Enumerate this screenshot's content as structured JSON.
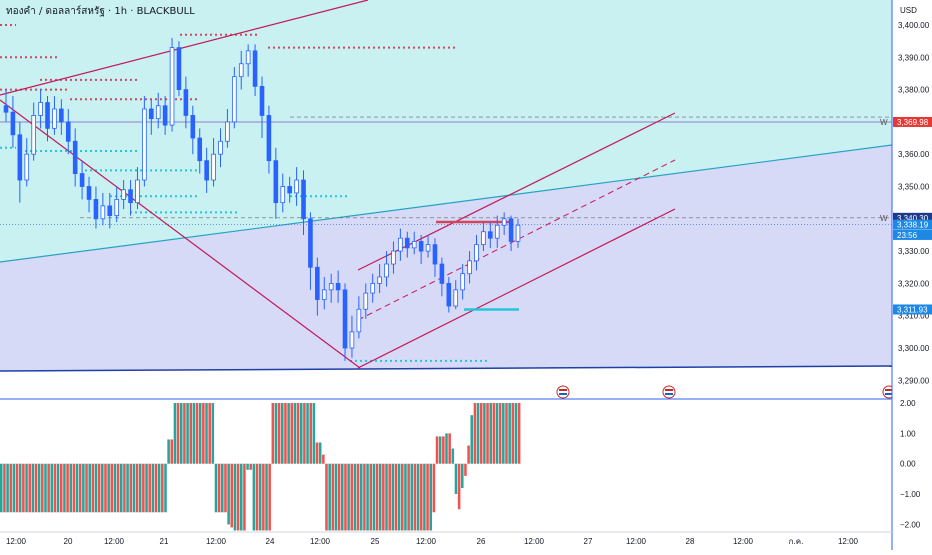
{
  "chart_data": {
    "type": "candlestick",
    "title": "ทองคำ / ดอลลาร์สหรัฐ · 1h · BLACKBULL",
    "currency": "USD",
    "price_axis": {
      "range": [
        3283,
        3408
      ],
      "ticks": [
        "3,400.00",
        "3,390.00",
        "3,380.00",
        "3,370.00",
        "3,360.00",
        "3,350.00",
        "3,340.00",
        "3,330.00",
        "3,320.00",
        "3,310.00",
        "3,300.00",
        "3,290.00"
      ]
    },
    "price_labels": [
      {
        "text": "3,369.98",
        "price": 3369.98,
        "color": "#e53935"
      },
      {
        "text": "3,340.30",
        "price": 3340.3,
        "color": "#1e3a8a"
      },
      {
        "text": "3,338.19",
        "price": 3338.19,
        "color": "#1e88e5"
      },
      {
        "text": "23:56",
        "price": 3335.0,
        "color": "#1e88e5"
      },
      {
        "text": "3,311.93",
        "price": 3311.93,
        "color": "#1e88e5"
      }
    ],
    "line_markers": [
      {
        "text": "W",
        "price": 3369.98
      },
      {
        "text": "W",
        "price": 3340.3
      }
    ],
    "x_axis": {
      "labels": [
        "12:00",
        "20",
        "12:00",
        "21",
        "12:00",
        "24",
        "12:00",
        "25",
        "12:00",
        "26",
        "12:00",
        "27",
        "12:00",
        "28",
        "12:00",
        "ก.ค.",
        "12:00"
      ]
    },
    "candles": [
      [
        3375,
        3373,
        3380,
        3370
      ],
      [
        3373,
        3366,
        3378,
        3362
      ],
      [
        3366,
        3352,
        3370,
        3345
      ],
      [
        3352,
        3360,
        3365,
        3350
      ],
      [
        3360,
        3372,
        3376,
        3358
      ],
      [
        3372,
        3376,
        3380,
        3368
      ],
      [
        3376,
        3368,
        3378,
        3364
      ],
      [
        3368,
        3374,
        3378,
        3366
      ],
      [
        3374,
        3370,
        3377,
        3366
      ],
      [
        3370,
        3364,
        3374,
        3360
      ],
      [
        3364,
        3354,
        3368,
        3350
      ],
      [
        3354,
        3350,
        3358,
        3346
      ],
      [
        3350,
        3346,
        3353,
        3342
      ],
      [
        3346,
        3340,
        3350,
        3337
      ],
      [
        3340,
        3344,
        3348,
        3338
      ],
      [
        3344,
        3341,
        3348,
        3337
      ],
      [
        3341,
        3346,
        3350,
        3339
      ],
      [
        3346,
        3349,
        3352,
        3343
      ],
      [
        3349,
        3345,
        3352,
        3341
      ],
      [
        3345,
        3352,
        3356,
        3343
      ],
      [
        3352,
        3374,
        3378,
        3350
      ],
      [
        3374,
        3371,
        3377,
        3366
      ],
      [
        3371,
        3375,
        3379,
        3368
      ],
      [
        3375,
        3369,
        3378,
        3366
      ],
      [
        3369,
        3393,
        3396,
        3367
      ],
      [
        3393,
        3380,
        3395,
        3378
      ],
      [
        3380,
        3372,
        3384,
        3368
      ],
      [
        3372,
        3365,
        3375,
        3360
      ],
      [
        3365,
        3358,
        3368,
        3354
      ],
      [
        3358,
        3352,
        3362,
        3348
      ],
      [
        3352,
        3360,
        3365,
        3350
      ],
      [
        3360,
        3364,
        3368,
        3356
      ],
      [
        3364,
        3370,
        3374,
        3362
      ],
      [
        3370,
        3384,
        3387,
        3368
      ],
      [
        3384,
        3388,
        3392,
        3380
      ],
      [
        3388,
        3392,
        3394,
        3384
      ],
      [
        3392,
        3381,
        3394,
        3378
      ],
      [
        3381,
        3372,
        3384,
        3365
      ],
      [
        3372,
        3358,
        3375,
        3354
      ],
      [
        3358,
        3345,
        3362,
        3340
      ],
      [
        3345,
        3350,
        3354,
        3342
      ],
      [
        3350,
        3348,
        3353,
        3345
      ],
      [
        3348,
        3352,
        3356,
        3344
      ],
      [
        3352,
        3340,
        3355,
        3335
      ],
      [
        3340,
        3325,
        3342,
        3318
      ],
      [
        3325,
        3315,
        3328,
        3310
      ],
      [
        3315,
        3318,
        3322,
        3312
      ],
      [
        3318,
        3320,
        3323,
        3314
      ],
      [
        3320,
        3318,
        3324,
        3314
      ],
      [
        3318,
        3300,
        3320,
        3296
      ],
      [
        3300,
        3305,
        3310,
        3297
      ],
      [
        3305,
        3312,
        3316,
        3303
      ],
      [
        3312,
        3317,
        3320,
        3309
      ],
      [
        3317,
        3320,
        3323,
        3314
      ],
      [
        3320,
        3322,
        3326,
        3317
      ],
      [
        3322,
        3326,
        3330,
        3319
      ],
      [
        3326,
        3330,
        3333,
        3323
      ],
      [
        3330,
        3334,
        3337,
        3327
      ],
      [
        3334,
        3331,
        3336,
        3328
      ],
      [
        3331,
        3333,
        3336,
        3329
      ],
      [
        3333,
        3330,
        3335,
        3326
      ],
      [
        3330,
        3332,
        3335,
        3328
      ],
      [
        3332,
        3326,
        3334,
        3322
      ],
      [
        3326,
        3320,
        3328,
        3316
      ],
      [
        3320,
        3313,
        3322,
        3311
      ],
      [
        3313,
        3318,
        3321,
        3312
      ],
      [
        3318,
        3323,
        3326,
        3315
      ],
      [
        3323,
        3327,
        3330,
        3320
      ],
      [
        3327,
        3332,
        3335,
        3324
      ],
      [
        3332,
        3336,
        3339,
        3330
      ],
      [
        3336,
        3334,
        3339,
        3331
      ],
      [
        3334,
        3338,
        3341,
        3331
      ],
      [
        3338,
        3340,
        3342,
        3335
      ],
      [
        3340,
        3333,
        3341,
        3330
      ],
      [
        3333,
        3338,
        3340,
        3331
      ]
    ],
    "indicator": {
      "type": "histogram",
      "range": [
        -2.25,
        2.1
      ],
      "ticks": [
        "2.00",
        "1.00",
        "0.00",
        "−1.00",
        "−2.00"
      ],
      "values": [
        -1.6,
        -1.6,
        -1.6,
        -1.6,
        -1.6,
        -1.6,
        -1.6,
        -1.6,
        -1.6,
        -1.6,
        -1.6,
        -1.6,
        -1.6,
        -1.6,
        -1.6,
        -1.6,
        -1.6,
        -1.6,
        -1.6,
        -1.6,
        -1.6,
        -1.6,
        -1.6,
        -1.6,
        -1.6,
        -1.6,
        -1.6,
        -1.6,
        -1.6,
        -1.6,
        -1.6,
        -1.6,
        -1.6,
        -1.6,
        -1.6,
        -1.6,
        -1.6,
        -1.6,
        -1.6,
        -1.6,
        -1.6,
        -1.6,
        -1.6,
        -1.6,
        -1.6,
        -1.6,
        -1.6,
        -1.6,
        -1.6,
        -1.6,
        -1.6,
        -1.6,
        -1.6,
        0.8,
        0.8,
        2.0,
        2.0,
        2.0,
        2.0,
        2.0,
        2.0,
        2.0,
        2.0,
        2.0,
        2.0,
        2.0,
        2.0,
        2.0,
        -1.6,
        -1.6,
        -1.6,
        -1.6,
        -2.0,
        -2.1,
        -2.2,
        -2.2,
        -2.2,
        -2.2,
        -0.2,
        -0.2,
        -2.2,
        -2.2,
        -2.2,
        -2.2,
        -2.2,
        -2.2,
        2.0,
        2.0,
        2.0,
        2.0,
        2.0,
        2.0,
        2.0,
        2.0,
        2.0,
        2.0,
        2.0,
        2.0,
        2.0,
        2.0,
        0.7,
        0.7,
        0.3,
        -2.2,
        -2.2,
        -2.2,
        -2.2,
        -2.2,
        -2.2,
        -2.2,
        -2.2,
        -2.2,
        -2.2,
        -2.2,
        -2.2,
        -2.2,
        -2.2,
        -2.2,
        -2.2,
        -2.2,
        -2.2,
        -2.2,
        -2.2,
        -2.2,
        -2.2,
        -2.2,
        -2.2,
        -2.2,
        -2.2,
        -2.2,
        -2.2,
        -2.2,
        -2.2,
        -2.2,
        -2.2,
        -2.2,
        -2.2,
        -1.6,
        0.9,
        0.9,
        0.9,
        1.0,
        1.0,
        0.5,
        -1.0,
        -1.5,
        -0.8,
        -0.4,
        0.6,
        1.6,
        2.0,
        2.0,
        2.0,
        2.0,
        2.0,
        2.0,
        2.0,
        2.0,
        2.0,
        2.0,
        2.0,
        2.0,
        2.0,
        2.0,
        2.0
      ]
    },
    "colors": {
      "up": "#2962ff",
      "down": "#2962ff",
      "hist_up": "#26a69a",
      "hist_down": "#ef5350",
      "zone_cyan": "#c9f1f1",
      "zone_lavender": "#d6daf6",
      "trend_red": "#c2185b",
      "level_cyan": "#26c6da",
      "axis_text": "#131722",
      "grid": "#e0e3eb"
    }
  }
}
